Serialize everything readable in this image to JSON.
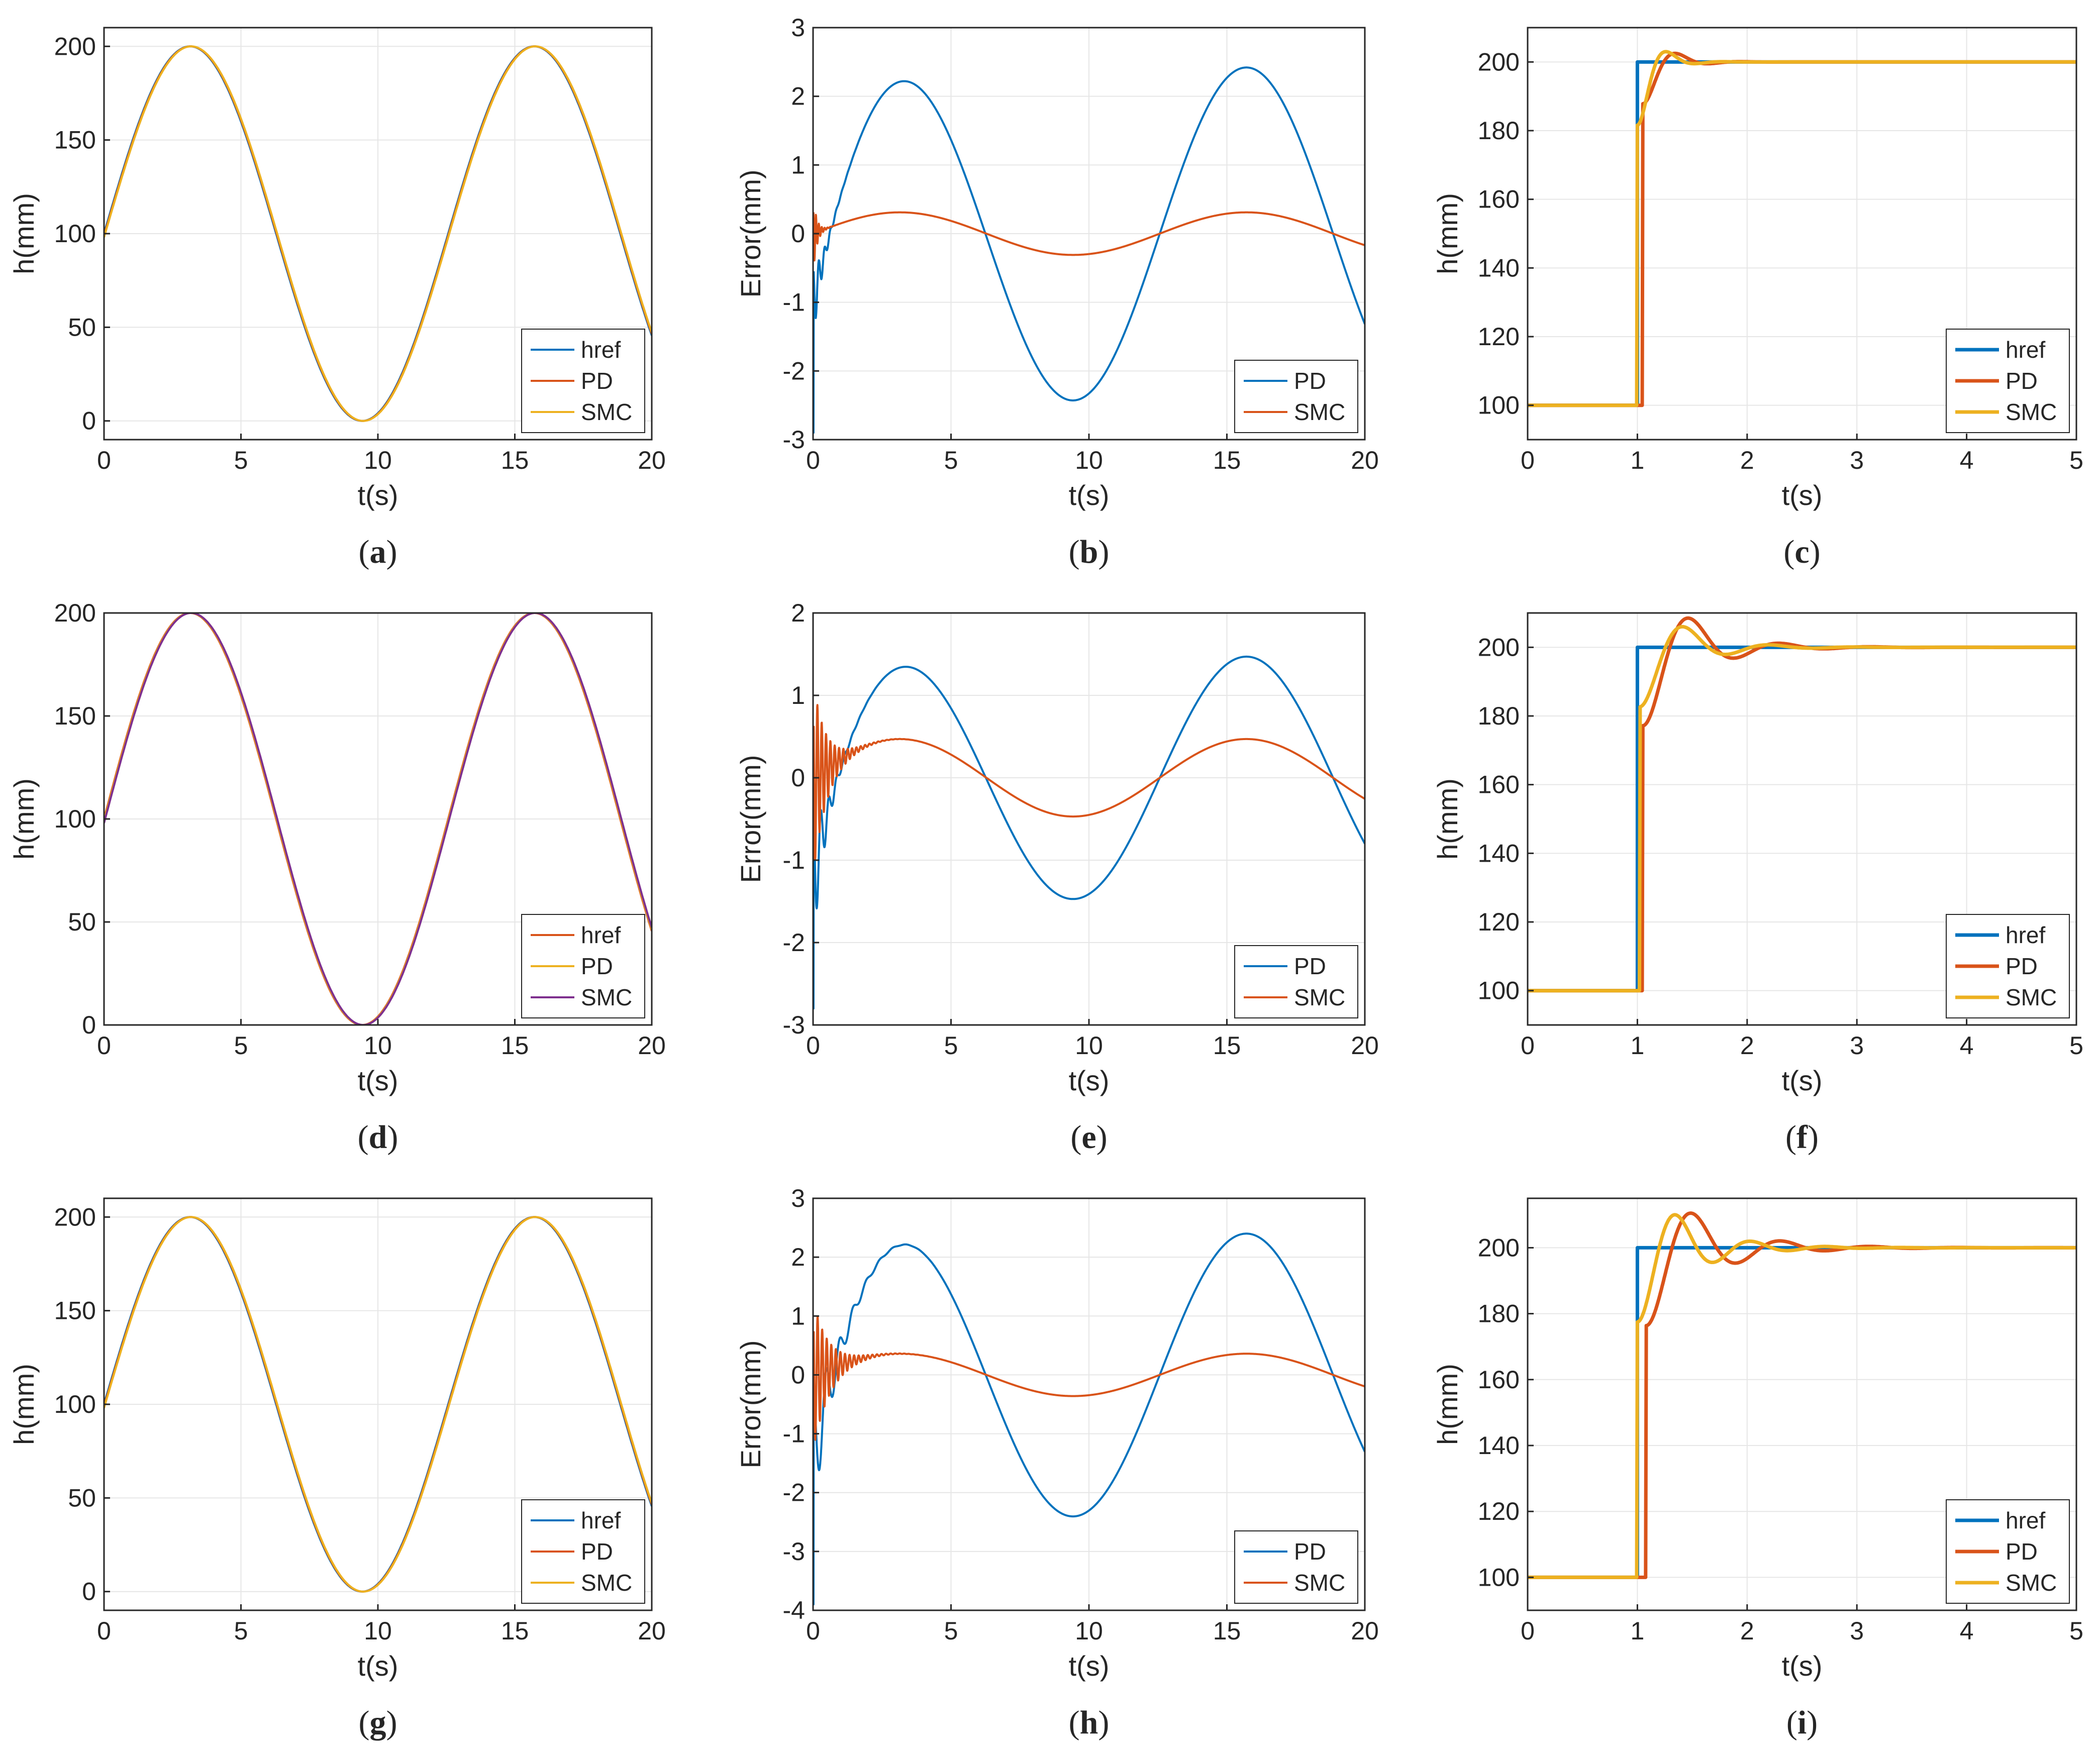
{
  "colors": {
    "blue": "#0072BD",
    "orange": "#D95319",
    "yellow": "#EDB120",
    "purple": "#7E2F8E",
    "grid": "#E6E6E6",
    "axis": "#262626"
  },
  "chart_data": [
    {
      "id": "a",
      "caption": "a",
      "type": "line",
      "signal": "sine",
      "xlabel": "t(s)",
      "ylabel": "h(mm)",
      "xlim": [
        0,
        20
      ],
      "ylim": [
        -10,
        210
      ],
      "xticks": [
        0,
        5,
        10,
        15,
        20
      ],
      "yticks": [
        0,
        50,
        100,
        150,
        200
      ],
      "grid": true,
      "legend_position": "bottom-right",
      "series": [
        {
          "name": "href",
          "color": "#0072BD",
          "width": 4
        },
        {
          "name": "PD",
          "color": "#D95319",
          "width": 4
        },
        {
          "name": "SMC",
          "color": "#EDB120",
          "width": 4
        }
      ]
    },
    {
      "id": "b",
      "caption": "b",
      "type": "line",
      "signal": "error",
      "xlabel": "t(s)",
      "ylabel": "Error(mm)",
      "xlim": [
        0,
        20
      ],
      "ylim": [
        -3,
        3
      ],
      "xticks": [
        0,
        5,
        10,
        15,
        20
      ],
      "yticks": [
        -3,
        -2,
        -1,
        0,
        1,
        2,
        3
      ],
      "grid": true,
      "legend_position": "bottom-right",
      "series": [
        {
          "name": "PD",
          "color": "#0072BD",
          "width": 4,
          "amplitude": 2.42,
          "transient": {
            "start": -2.9,
            "amp": 0.6,
            "decay": 4,
            "freq": 30,
            "bias": 1.0,
            "biasDecay": 0.5
          }
        },
        {
          "name": "SMC",
          "color": "#D95319",
          "width": 4,
          "amplitude": 0.31,
          "transient": {
            "start": 0.3,
            "amp": 0.6,
            "decay": 8,
            "freq": 60,
            "bias": 0.0,
            "biasDecay": 1
          }
        }
      ]
    },
    {
      "id": "c",
      "caption": "c",
      "type": "line",
      "signal": "step",
      "xlabel": "t(s)",
      "ylabel": "h(mm)",
      "xlim": [
        0,
        5
      ],
      "ylim": [
        90,
        210
      ],
      "xticks": [
        0,
        1,
        2,
        3,
        4,
        5
      ],
      "yticks": [
        100,
        120,
        140,
        160,
        180,
        200
      ],
      "grid": true,
      "legend_position": "bottom-right",
      "series": [
        {
          "name": "href",
          "color": "#0072BD",
          "width": 7,
          "kind": "ref"
        },
        {
          "name": "PD",
          "color": "#D95319",
          "width": 7,
          "kind": "resp",
          "delay": 0.05,
          "rise": 0.22,
          "overshoot": 2.5,
          "zeta": 0.45,
          "wn": 12,
          "wd": 12
        },
        {
          "name": "SMC",
          "color": "#EDB120",
          "width": 7,
          "kind": "resp",
          "delay": 0.0,
          "rise": 0.16,
          "overshoot": 3.0,
          "zeta": 0.5,
          "wn": 14,
          "wd": 14
        }
      ]
    },
    {
      "id": "d",
      "caption": "d",
      "type": "line",
      "signal": "sine",
      "xlabel": "t(s)",
      "ylabel": "h(mm)",
      "xlim": [
        0,
        20
      ],
      "ylim": [
        0,
        200
      ],
      "xticks": [
        0,
        5,
        10,
        15,
        20
      ],
      "yticks": [
        0,
        50,
        100,
        150,
        200
      ],
      "grid": true,
      "legend_position": "bottom-right",
      "series": [
        {
          "name": "href",
          "color": "#D95319",
          "width": 4
        },
        {
          "name": "PD",
          "color": "#EDB120",
          "width": 4
        },
        {
          "name": "SMC",
          "color": "#7E2F8E",
          "width": 4
        }
      ]
    },
    {
      "id": "e",
      "caption": "e",
      "type": "line",
      "signal": "error",
      "xlabel": "t(s)",
      "ylabel": "Error(mm)",
      "xlim": [
        0,
        20
      ],
      "ylim": [
        -3,
        2
      ],
      "xticks": [
        0,
        5,
        10,
        15,
        20
      ],
      "yticks": [
        -3,
        -2,
        -1,
        0,
        1,
        2
      ],
      "grid": true,
      "legend_position": "bottom-right",
      "series": [
        {
          "name": "PD",
          "color": "#0072BD",
          "width": 4,
          "amplitude": 1.47,
          "transient": {
            "start": -2.8,
            "amp": 0.9,
            "decay": 3,
            "freq": 22,
            "bias": 1.2,
            "biasDecay": 0.7
          }
        },
        {
          "name": "SMC",
          "color": "#D95319",
          "width": 4,
          "amplitude": 0.47,
          "transient": {
            "start": -1.0,
            "amp": 1.2,
            "decay": 2.2,
            "freq": 40,
            "bias": 0.0,
            "biasDecay": 1
          }
        }
      ]
    },
    {
      "id": "f",
      "caption": "f",
      "type": "line",
      "signal": "step",
      "xlabel": "t(s)",
      "ylabel": "h(mm)",
      "xlim": [
        0,
        5
      ],
      "ylim": [
        90,
        210
      ],
      "xticks": [
        0,
        1,
        2,
        3,
        4,
        5
      ],
      "yticks": [
        100,
        120,
        140,
        160,
        180,
        200
      ],
      "grid": true,
      "legend_position": "bottom-right",
      "series": [
        {
          "name": "href",
          "color": "#0072BD",
          "width": 7,
          "kind": "ref"
        },
        {
          "name": "PD",
          "color": "#D95319",
          "width": 7,
          "kind": "resp",
          "delay": 0.05,
          "rise": 0.3,
          "overshoot": 8.5,
          "zeta": 0.3,
          "wn": 8,
          "wd": 8
        },
        {
          "name": "SMC",
          "color": "#EDB120",
          "width": 7,
          "kind": "resp",
          "delay": 0.02,
          "rise": 0.28,
          "overshoot": 6.0,
          "zeta": 0.32,
          "wn": 8.5,
          "wd": 8.5
        }
      ]
    },
    {
      "id": "g",
      "caption": "g",
      "type": "line",
      "signal": "sine",
      "xlabel": "t(s)",
      "ylabel": "h(mm)",
      "xlim": [
        0,
        20
      ],
      "ylim": [
        -10,
        210
      ],
      "xticks": [
        0,
        5,
        10,
        15,
        20
      ],
      "yticks": [
        0,
        50,
        100,
        150,
        200
      ],
      "grid": true,
      "legend_position": "bottom-right",
      "series": [
        {
          "name": "href",
          "color": "#0072BD",
          "width": 4
        },
        {
          "name": "PD",
          "color": "#D95319",
          "width": 4
        },
        {
          "name": "SMC",
          "color": "#EDB120",
          "width": 4
        }
      ]
    },
    {
      "id": "h",
      "caption": "h",
      "type": "line",
      "signal": "error",
      "xlabel": "t(s)",
      "ylabel": "Error(mm)",
      "xlim": [
        0,
        20
      ],
      "ylim": [
        -4,
        3
      ],
      "xticks": [
        0,
        5,
        10,
        15,
        20
      ],
      "yticks": [
        -4,
        -3,
        -2,
        -1,
        0,
        1,
        2,
        3
      ],
      "grid": true,
      "legend_position": "bottom-right",
      "series": [
        {
          "name": "PD",
          "color": "#0072BD",
          "width": 4,
          "amplitude": 2.4,
          "transient": {
            "start": -3.9,
            "amp": 1.1,
            "decay": 1.6,
            "freq": 13,
            "bias": 1.3,
            "biasDecay": 0.6
          }
        },
        {
          "name": "SMC",
          "color": "#D95319",
          "width": 4,
          "amplitude": 0.36,
          "transient": {
            "start": -0.6,
            "amp": 1.3,
            "decay": 1.8,
            "freq": 38,
            "bias": 0.0,
            "biasDecay": 1
          }
        }
      ]
    },
    {
      "id": "i",
      "caption": "i",
      "type": "line",
      "signal": "step",
      "xlabel": "t(s)",
      "ylabel": "h(mm)",
      "xlim": [
        0,
        5
      ],
      "ylim": [
        90,
        215
      ],
      "xticks": [
        0,
        1,
        2,
        3,
        4,
        5
      ],
      "yticks": [
        100,
        120,
        140,
        160,
        180,
        200
      ],
      "grid": true,
      "legend_position": "bottom-right",
      "series": [
        {
          "name": "href",
          "color": "#0072BD",
          "width": 7,
          "kind": "ref"
        },
        {
          "name": "PD",
          "color": "#D95319",
          "width": 7,
          "kind": "resp",
          "delay": 0.08,
          "rise": 0.32,
          "overshoot": 10.5,
          "zeta": 0.25,
          "wn": 8,
          "wd": 8
        },
        {
          "name": "SMC",
          "color": "#EDB120",
          "width": 7,
          "kind": "resp",
          "delay": 0.0,
          "rise": 0.28,
          "overshoot": 10.0,
          "zeta": 0.25,
          "wn": 9.5,
          "wd": 9.5
        }
      ]
    }
  ]
}
